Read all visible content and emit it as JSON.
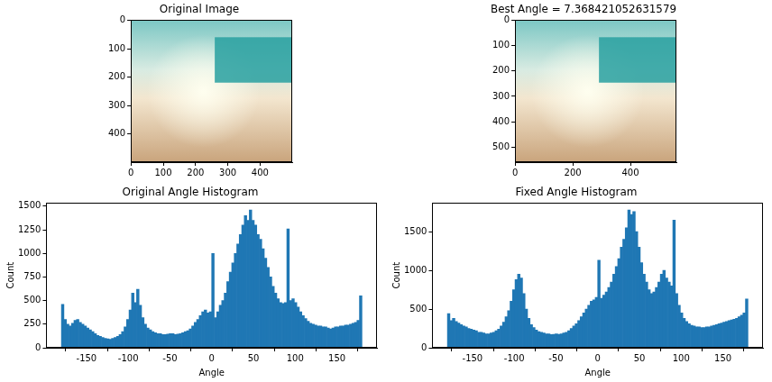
{
  "chart_data": [
    {
      "type": "image",
      "title": "Original Image",
      "xlim": [
        -0.5,
        499.5
      ],
      "ylim": [
        499.5,
        -0.5
      ],
      "xticks": [
        0,
        100,
        200,
        300,
        400
      ],
      "yticks": [
        0,
        100,
        200,
        300,
        400
      ],
      "grid": false
    },
    {
      "type": "image",
      "title": "Best Angle = 7.368421052631579",
      "xlim": [
        -0.5,
        559.5
      ],
      "ylim": [
        559.5,
        -0.5
      ],
      "xticks": [
        0,
        200,
        400
      ],
      "yticks": [
        0,
        100,
        200,
        300,
        400,
        500
      ],
      "grid": false
    },
    {
      "type": "histogram",
      "title": "Original Angle Histogram",
      "x_label": "Angle",
      "y_label": "Count",
      "color": "#1f77b4",
      "grid": false,
      "xlim": [
        -198,
        198
      ],
      "xticks": [
        -150,
        -100,
        -50,
        0,
        50,
        100,
        150
      ],
      "ylim": [
        0,
        1533
      ],
      "yticks": [
        0,
        250,
        500,
        750,
        1000,
        1250,
        1500
      ],
      "bins": [
        -180,
        -177,
        -174,
        -171,
        -168,
        -165,
        -162,
        -159,
        -156,
        -153,
        -150,
        -147,
        -144,
        -141,
        -138,
        -135,
        -132,
        -129,
        -126,
        -123,
        -120,
        -117,
        -114,
        -111,
        -108,
        -105,
        -102,
        -99,
        -96,
        -93,
        -90,
        -87,
        -84,
        -81,
        -78,
        -75,
        -72,
        -69,
        -66,
        -63,
        -60,
        -57,
        -54,
        -51,
        -48,
        -45,
        -42,
        -39,
        -36,
        -33,
        -30,
        -27,
        -24,
        -21,
        -18,
        -15,
        -12,
        -9,
        -6,
        -3,
        0,
        3,
        6,
        9,
        12,
        15,
        18,
        21,
        24,
        27,
        30,
        33,
        36,
        39,
        42,
        45,
        48,
        51,
        54,
        57,
        60,
        63,
        66,
        69,
        72,
        75,
        78,
        81,
        84,
        87,
        90,
        93,
        96,
        99,
        102,
        105,
        108,
        111,
        114,
        117,
        120,
        123,
        126,
        129,
        132,
        135,
        138,
        141,
        144,
        147,
        150,
        153,
        156,
        159,
        162,
        165,
        168,
        171,
        174,
        177,
        180
      ],
      "values": [
        460,
        300,
        250,
        230,
        260,
        290,
        300,
        270,
        250,
        230,
        210,
        190,
        170,
        150,
        130,
        120,
        110,
        100,
        95,
        90,
        100,
        110,
        120,
        140,
        170,
        220,
        300,
        400,
        580,
        480,
        620,
        450,
        320,
        250,
        210,
        190,
        170,
        160,
        150,
        150,
        140,
        140,
        145,
        150,
        150,
        140,
        145,
        150,
        160,
        170,
        180,
        200,
        230,
        270,
        300,
        340,
        380,
        400,
        370,
        380,
        1000,
        320,
        380,
        450,
        500,
        580,
        700,
        800,
        900,
        1000,
        1100,
        1200,
        1300,
        1400,
        1350,
        1460,
        1350,
        1300,
        1200,
        1150,
        1050,
        950,
        850,
        750,
        650,
        580,
        520,
        480,
        470,
        480,
        1260,
        500,
        520,
        480,
        430,
        380,
        340,
        310,
        280,
        260,
        250,
        240,
        230,
        230,
        220,
        220,
        210,
        200,
        210,
        220,
        220,
        230,
        230,
        240,
        240,
        250,
        260,
        270,
        290,
        550
      ]
    },
    {
      "type": "histogram",
      "title": "Fixed Angle Histogram",
      "x_label": "Angle",
      "y_label": "Count",
      "color": "#1f77b4",
      "grid": false,
      "xlim": [
        -198,
        198
      ],
      "xticks": [
        -150,
        -100,
        -50,
        0,
        50,
        100,
        150
      ],
      "ylim": [
        0,
        1869
      ],
      "yticks": [
        0,
        500,
        1000,
        1500
      ],
      "bins": [
        -180,
        -177,
        -174,
        -171,
        -168,
        -165,
        -162,
        -159,
        -156,
        -153,
        -150,
        -147,
        -144,
        -141,
        -138,
        -135,
        -132,
        -129,
        -126,
        -123,
        -120,
        -117,
        -114,
        -111,
        -108,
        -105,
        -102,
        -99,
        -96,
        -93,
        -90,
        -87,
        -84,
        -81,
        -78,
        -75,
        -72,
        -69,
        -66,
        -63,
        -60,
        -57,
        -54,
        -51,
        -48,
        -45,
        -42,
        -39,
        -36,
        -33,
        -30,
        -27,
        -24,
        -21,
        -18,
        -15,
        -12,
        -9,
        -6,
        -3,
        0,
        3,
        6,
        9,
        12,
        15,
        18,
        21,
        24,
        27,
        30,
        33,
        36,
        39,
        42,
        45,
        48,
        51,
        54,
        57,
        60,
        63,
        66,
        69,
        72,
        75,
        78,
        81,
        84,
        87,
        90,
        93,
        96,
        99,
        102,
        105,
        108,
        111,
        114,
        117,
        120,
        123,
        126,
        129,
        132,
        135,
        138,
        141,
        144,
        147,
        150,
        153,
        156,
        159,
        162,
        165,
        168,
        171,
        174,
        177,
        180
      ],
      "values": [
        440,
        350,
        380,
        340,
        320,
        300,
        280,
        270,
        250,
        240,
        230,
        220,
        200,
        200,
        190,
        180,
        180,
        190,
        200,
        220,
        240,
        280,
        330,
        400,
        480,
        600,
        750,
        880,
        950,
        900,
        700,
        500,
        380,
        300,
        260,
        230,
        210,
        200,
        190,
        180,
        180,
        170,
        175,
        180,
        175,
        180,
        190,
        200,
        220,
        250,
        280,
        310,
        350,
        400,
        450,
        500,
        550,
        600,
        620,
        650,
        1130,
        640,
        680,
        720,
        780,
        850,
        950,
        1050,
        1150,
        1300,
        1400,
        1550,
        1780,
        1720,
        1760,
        1500,
        1300,
        1100,
        950,
        850,
        750,
        700,
        720,
        780,
        850,
        950,
        1000,
        900,
        850,
        800,
        1650,
        700,
        550,
        450,
        380,
        340,
        310,
        290,
        280,
        270,
        270,
        260,
        260,
        270,
        270,
        280,
        290,
        300,
        310,
        320,
        330,
        340,
        350,
        360,
        370,
        380,
        400,
        420,
        450,
        630
      ]
    }
  ]
}
